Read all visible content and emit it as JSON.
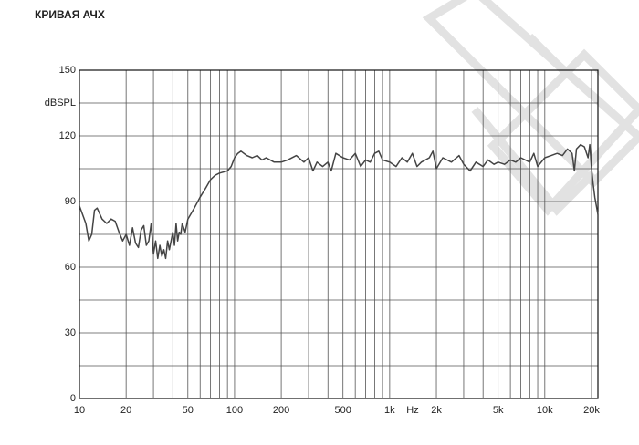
{
  "chart_data": {
    "type": "line",
    "title": "КРИВАЯ АЧХ",
    "x_label": "Hz",
    "log_x": true,
    "xlim": [
      10,
      22000
    ],
    "xticks": [
      10,
      20,
      50,
      100,
      200,
      500,
      {
        "value": 1000,
        "label": "1k"
      },
      {
        "value": 2000,
        "label": "2k"
      },
      {
        "value": 5000,
        "label": "5k"
      },
      {
        "value": 10000,
        "label": "10k"
      },
      {
        "value": 20000,
        "label": "20k"
      }
    ],
    "xgrid": [
      30,
      40,
      60,
      70,
      80,
      90,
      300,
      400,
      600,
      700,
      800,
      900,
      3000,
      4000,
      6000,
      7000,
      8000,
      9000
    ],
    "ylim": [
      0,
      150
    ],
    "yticks": [
      0,
      30,
      60,
      90,
      120,
      {
        "value": 135,
        "label": "dBSPL"
      },
      150
    ],
    "ygrid": [
      15,
      45,
      75,
      105
    ],
    "grid": true,
    "series": [
      {
        "name": null,
        "color": "#444444",
        "x": [
          10,
          11,
          11.5,
          12,
          12.5,
          13,
          14,
          15,
          16,
          17,
          18,
          19,
          20,
          21,
          22,
          23,
          24,
          25,
          26,
          27,
          28,
          29,
          30,
          31,
          32,
          33,
          34,
          35,
          36,
          37,
          38,
          40,
          41,
          42,
          43,
          44,
          45,
          46,
          48,
          50,
          55,
          60,
          65,
          70,
          75,
          80,
          90,
          95,
          100,
          105,
          110,
          120,
          130,
          140,
          150,
          160,
          180,
          200,
          220,
          250,
          280,
          300,
          320,
          340,
          370,
          400,
          420,
          450,
          500,
          550,
          600,
          650,
          700,
          750,
          800,
          850,
          900,
          1000,
          1100,
          1200,
          1300,
          1400,
          1500,
          1600,
          1800,
          1900,
          2000,
          2200,
          2500,
          2800,
          3000,
          3300,
          3600,
          4000,
          4300,
          4700,
          5000,
          5500,
          6000,
          6500,
          7000,
          8000,
          8500,
          9000,
          10000,
          11000,
          12000,
          13000,
          14000,
          15000,
          15500,
          16000,
          17000,
          18000,
          19000,
          19500,
          20000,
          20500,
          21000,
          22000
        ],
        "values": [
          88,
          80,
          72,
          75,
          86,
          87,
          82,
          80,
          82,
          81,
          76,
          72,
          75,
          70,
          78,
          71,
          69,
          77,
          79,
          70,
          72,
          80,
          66,
          72,
          64,
          70,
          65,
          68,
          64,
          72,
          68,
          76,
          70,
          80,
          72,
          76,
          75,
          80,
          76,
          82,
          87,
          92,
          96,
          100,
          102,
          103,
          104,
          106,
          110,
          112,
          113,
          111,
          110,
          111,
          109,
          110,
          108,
          108,
          109,
          111,
          108,
          110,
          104,
          108,
          106,
          108,
          104,
          112,
          110,
          109,
          112,
          106,
          109,
          108,
          112,
          113,
          109,
          108,
          106,
          110,
          108,
          112,
          106,
          108,
          110,
          113,
          105,
          110,
          108,
          111,
          107,
          104,
          108,
          106,
          109,
          107,
          108,
          107,
          109,
          108,
          110,
          108,
          112,
          106,
          110,
          111,
          112,
          111,
          114,
          112,
          104,
          114,
          116,
          115,
          110,
          116,
          105,
          98,
          92,
          84
        ]
      }
    ]
  }
}
